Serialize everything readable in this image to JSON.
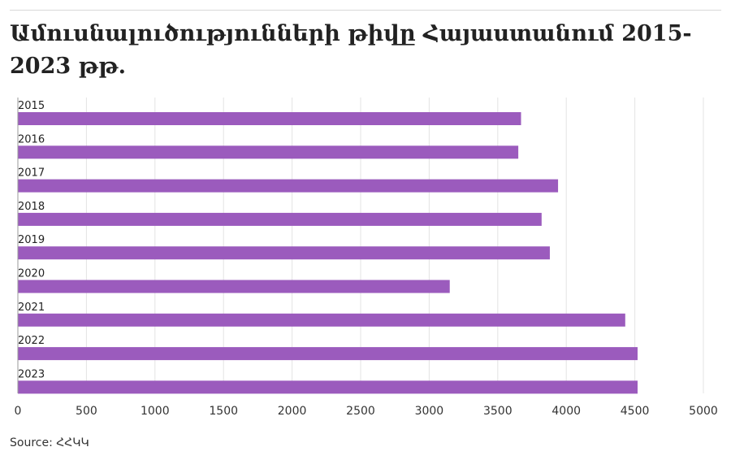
{
  "title": "Ամուսնալուծությունների թիվը Հայաստանում 2015-2023 թթ.",
  "source": "Source: ՀՀԿԿ",
  "colors": {
    "bar": "#9b5bbd",
    "grid": "#e3e3e3",
    "axis": "#9a9a9a"
  },
  "chart_data": {
    "type": "bar",
    "orientation": "horizontal",
    "title": "Ամուսնալուծությունների թիվը Հայաստանում 2015-2023 թթ.",
    "categories": [
      "2015",
      "2016",
      "2017",
      "2018",
      "2019",
      "2020",
      "2021",
      "2022",
      "2023"
    ],
    "values": [
      3670,
      3650,
      3940,
      3820,
      3880,
      3150,
      4430,
      4520,
      4520
    ],
    "xlim": [
      0,
      5000
    ],
    "xticks": [
      0,
      500,
      1000,
      1500,
      2000,
      2500,
      3000,
      3500,
      4000,
      4500,
      5000
    ],
    "grid": "vertical",
    "xlabel": "",
    "ylabel": ""
  }
}
